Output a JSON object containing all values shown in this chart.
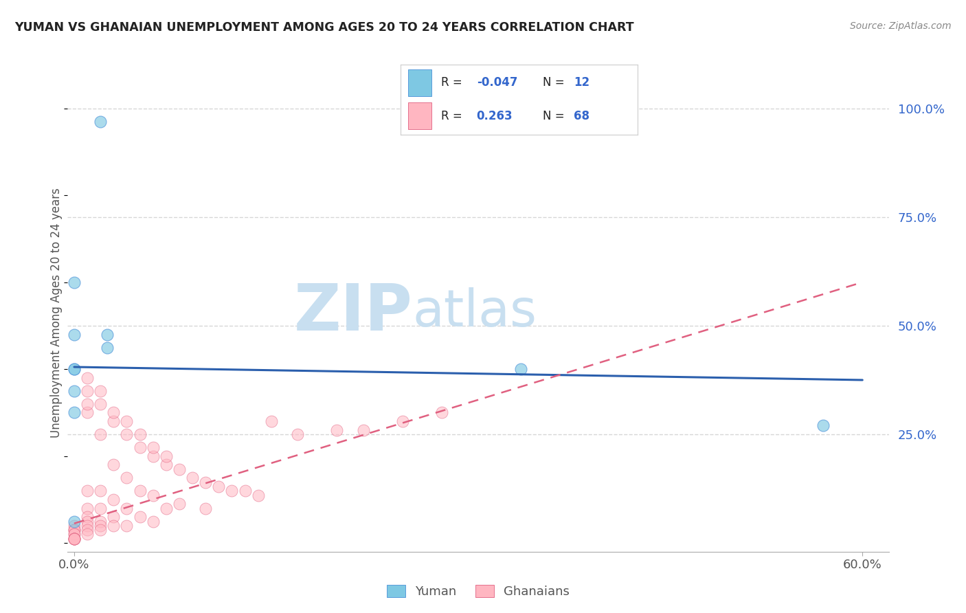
{
  "title": "YUMAN VS GHANAIAN UNEMPLOYMENT AMONG AGES 20 TO 24 YEARS CORRELATION CHART",
  "source": "Source: ZipAtlas.com",
  "ylabel": "Unemployment Among Ages 20 to 24 years",
  "xlim": [
    -0.005,
    0.62
  ],
  "ylim": [
    -0.02,
    1.08
  ],
  "xticks": [
    0.0,
    0.6
  ],
  "xticklabels": [
    "0.0%",
    "60.0%"
  ],
  "yticks_right": [
    0.25,
    0.5,
    0.75,
    1.0
  ],
  "yticklabels_right": [
    "25.0%",
    "50.0%",
    "75.0%",
    "100.0%"
  ],
  "watermark_zip": "ZIP",
  "watermark_atlas": "atlas",
  "watermark_color": "#c8dff0",
  "blue_color": "#7ec8e3",
  "pink_color": "#ffb6c1",
  "blue_edge_color": "#4a90d9",
  "pink_edge_color": "#e06080",
  "blue_line_color": "#2b5fad",
  "pink_line_color": "#e06080",
  "grid_color": "#cccccc",
  "blue_scatter_x": [
    0.02,
    0.0,
    0.0,
    0.025,
    0.025,
    0.0,
    0.34,
    0.57,
    0.0,
    0.0,
    0.0,
    0.0
  ],
  "blue_scatter_y": [
    0.97,
    0.6,
    0.48,
    0.48,
    0.45,
    0.4,
    0.4,
    0.27,
    0.35,
    0.3,
    0.05,
    0.4
  ],
  "pink_scatter_x": [
    0.0,
    0.0,
    0.0,
    0.0,
    0.0,
    0.0,
    0.0,
    0.0,
    0.0,
    0.0,
    0.0,
    0.0,
    0.01,
    0.01,
    0.01,
    0.01,
    0.01,
    0.01,
    0.01,
    0.01,
    0.01,
    0.02,
    0.02,
    0.02,
    0.02,
    0.02,
    0.02,
    0.02,
    0.03,
    0.03,
    0.03,
    0.03,
    0.03,
    0.04,
    0.04,
    0.04,
    0.04,
    0.05,
    0.05,
    0.05,
    0.06,
    0.06,
    0.06,
    0.07,
    0.07,
    0.08,
    0.08,
    0.09,
    0.1,
    0.1,
    0.11,
    0.12,
    0.13,
    0.14,
    0.15,
    0.17,
    0.2,
    0.22,
    0.25,
    0.28,
    0.01,
    0.01,
    0.02,
    0.03,
    0.04,
    0.05,
    0.06,
    0.07
  ],
  "pink_scatter_y": [
    0.04,
    0.03,
    0.03,
    0.03,
    0.02,
    0.02,
    0.01,
    0.01,
    0.01,
    0.01,
    0.01,
    0.01,
    0.38,
    0.3,
    0.12,
    0.08,
    0.06,
    0.05,
    0.04,
    0.03,
    0.02,
    0.35,
    0.25,
    0.12,
    0.08,
    0.05,
    0.04,
    0.03,
    0.28,
    0.18,
    0.1,
    0.06,
    0.04,
    0.25,
    0.15,
    0.08,
    0.04,
    0.22,
    0.12,
    0.06,
    0.2,
    0.11,
    0.05,
    0.18,
    0.08,
    0.17,
    0.09,
    0.15,
    0.14,
    0.08,
    0.13,
    0.12,
    0.12,
    0.11,
    0.28,
    0.25,
    0.26,
    0.26,
    0.28,
    0.3,
    0.35,
    0.32,
    0.32,
    0.3,
    0.28,
    0.25,
    0.22,
    0.2
  ],
  "blue_trend_x": [
    0.0,
    0.6
  ],
  "blue_trend_y": [
    0.405,
    0.375
  ],
  "pink_trend_x": [
    0.0,
    0.6
  ],
  "pink_trend_y": [
    0.045,
    0.6
  ],
  "background_color": "#ffffff"
}
